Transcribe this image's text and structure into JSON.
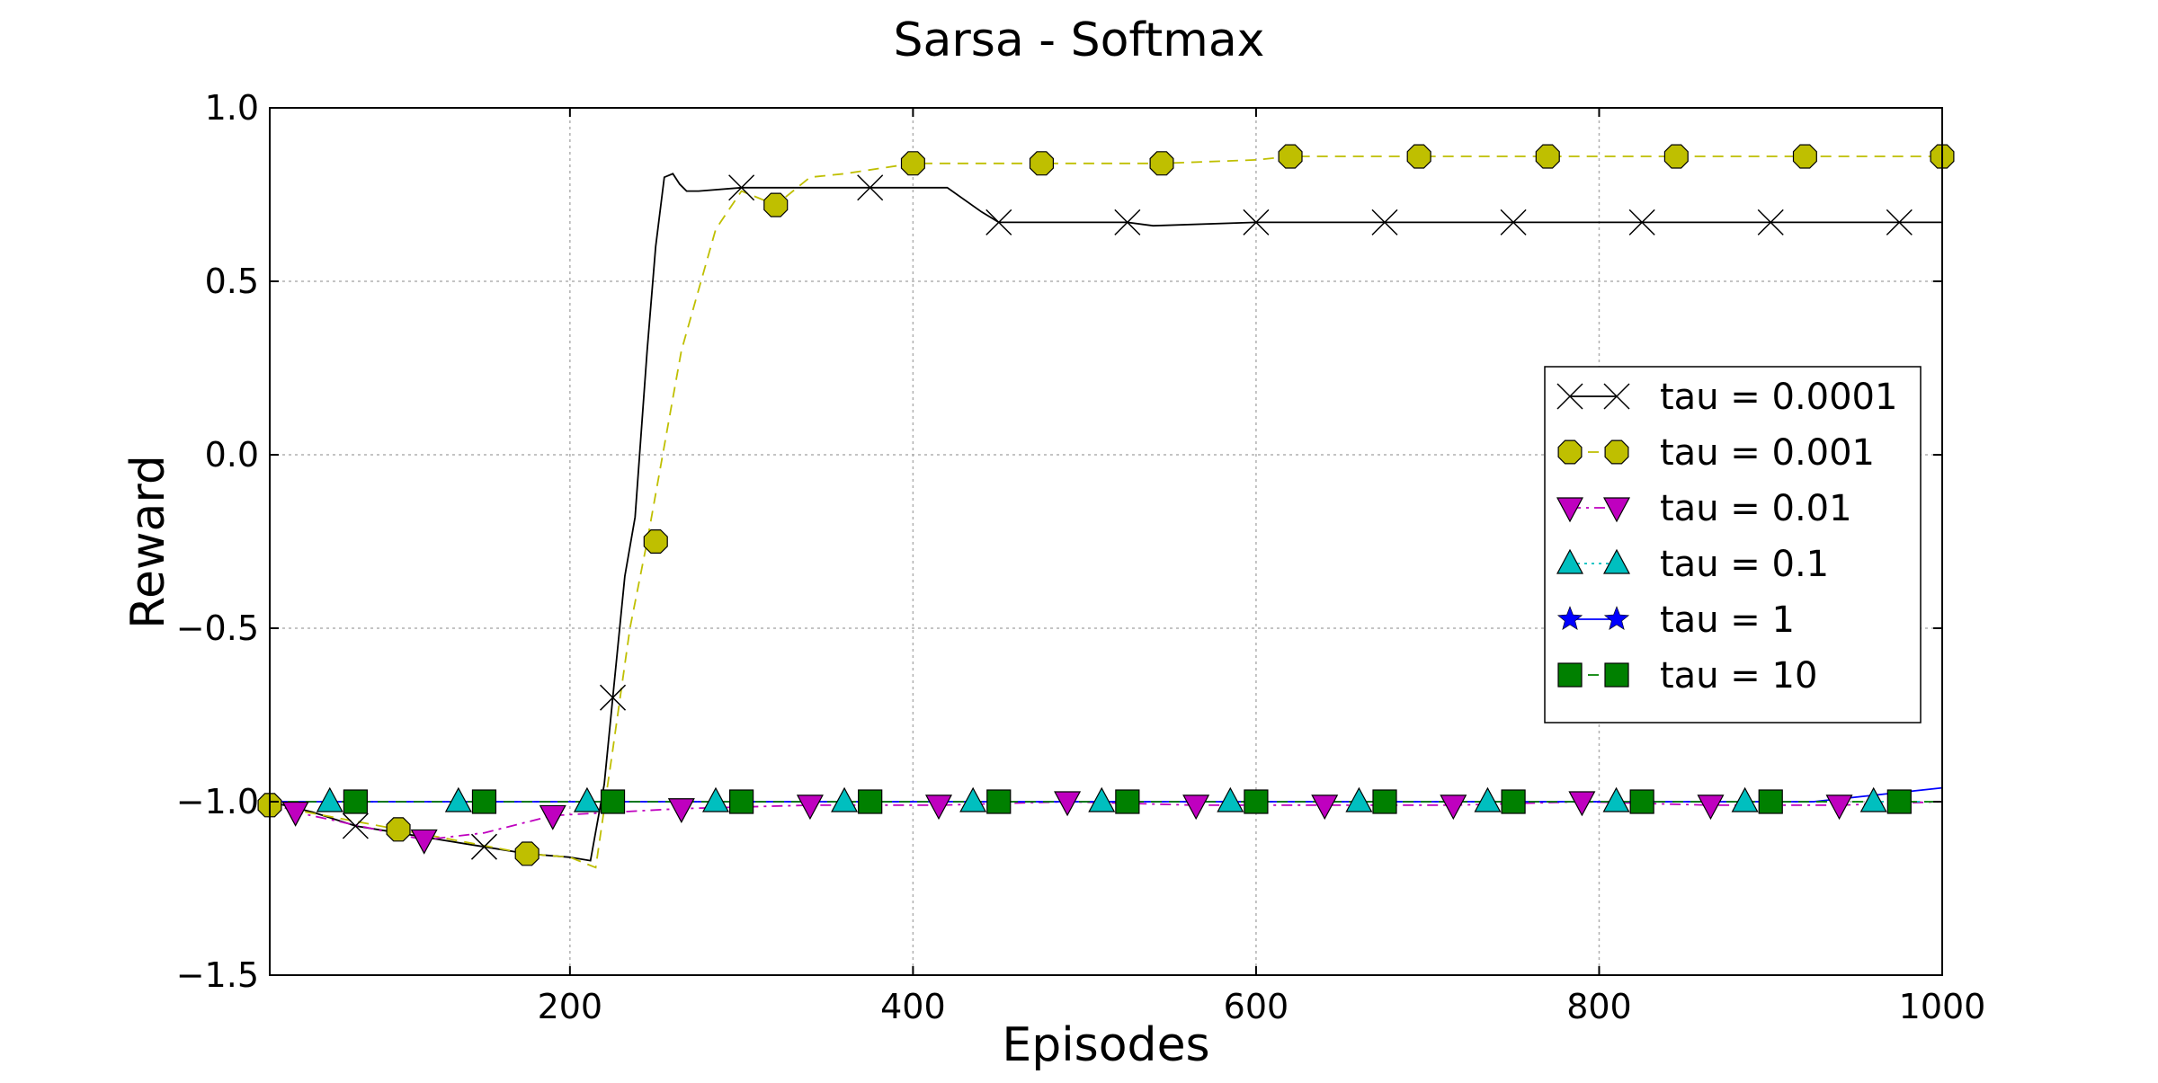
{
  "chart_data": {
    "type": "line",
    "title": "Sarsa - Softmax",
    "xlabel": "Episodes",
    "ylabel": "Reward",
    "xlim": [
      25,
      1000
    ],
    "ylim": [
      -1.5,
      1.0
    ],
    "xticks": [
      200,
      400,
      600,
      800,
      1000
    ],
    "yticks": [
      -1.5,
      -1.0,
      -0.5,
      0.0,
      0.5,
      1.0
    ],
    "xtick_labels": [
      "200",
      "400",
      "600",
      "800",
      "1000"
    ],
    "ytick_labels": [
      "−1.5",
      "−1.0",
      "−0.5",
      "0.0",
      "0.5",
      "1.0"
    ],
    "grid": true,
    "legend_position": "center-right",
    "series": [
      {
        "name": "tau = 0.0001",
        "color": "#000000",
        "marker": "x",
        "dash": "solid",
        "x": [
          25,
          50,
          75,
          100,
          125,
          150,
          175,
          200,
          212,
          220,
          225,
          232,
          238,
          245,
          250,
          255,
          260,
          264,
          268,
          275,
          300,
          350,
          375,
          420,
          440,
          450,
          500,
          525,
          540,
          600,
          675,
          750,
          825,
          900,
          975,
          1000
        ],
        "y": [
          -1.0,
          -1.03,
          -1.07,
          -1.09,
          -1.11,
          -1.13,
          -1.15,
          -1.16,
          -1.17,
          -0.95,
          -0.7,
          -0.35,
          -0.18,
          0.3,
          0.6,
          0.8,
          0.81,
          0.78,
          0.76,
          0.76,
          0.77,
          0.77,
          0.77,
          0.77,
          0.7,
          0.67,
          0.67,
          0.67,
          0.66,
          0.67,
          0.67,
          0.67,
          0.67,
          0.67,
          0.67,
          0.67
        ]
      },
      {
        "name": "tau = 0.001",
        "color": "#bfbf00",
        "marker": "octagon",
        "dash": "dashed",
        "x": [
          25,
          100,
          175,
          200,
          215,
          225,
          235,
          245,
          265,
          285,
          300,
          320,
          340,
          360,
          400,
          450,
          475,
          520,
          545,
          600,
          620,
          695,
          770,
          845,
          920,
          1000
        ],
        "y": [
          -1.01,
          -1.08,
          -1.15,
          -1.16,
          -1.19,
          -0.85,
          -0.5,
          -0.25,
          0.3,
          0.65,
          0.76,
          0.72,
          0.8,
          0.81,
          0.84,
          0.84,
          0.84,
          0.84,
          0.84,
          0.85,
          0.86,
          0.86,
          0.86,
          0.86,
          0.86,
          0.86
        ]
      },
      {
        "name": "tau = 0.01",
        "color": "#bf00bf",
        "marker": "triangle-down",
        "dash": "dashdot",
        "x": [
          25,
          40,
          115,
          150,
          190,
          265,
          340,
          415,
          490,
          565,
          640,
          715,
          790,
          865,
          940,
          1000
        ],
        "y": [
          -1.0,
          -1.03,
          -1.11,
          -1.09,
          -1.04,
          -1.02,
          -1.01,
          -1.01,
          -1.0,
          -1.01,
          -1.01,
          -1.01,
          -1.0,
          -1.01,
          -1.01,
          -1.0
        ]
      },
      {
        "name": "tau = 0.1",
        "color": "#00bfbf",
        "marker": "triangle-up",
        "dash": "dotted",
        "x": [
          25,
          60,
          135,
          210,
          285,
          360,
          435,
          510,
          585,
          660,
          735,
          810,
          885,
          960,
          1000
        ],
        "y": [
          -1.0,
          -1.0,
          -1.0,
          -1.0,
          -1.0,
          -1.0,
          -1.0,
          -1.0,
          -1.0,
          -1.0,
          -1.0,
          -1.0,
          -1.0,
          -1.0,
          -1.0
        ]
      },
      {
        "name": "tau = 1",
        "color": "#0000ff",
        "marker": "star",
        "dash": "solid",
        "x": [
          25,
          100,
          175,
          250,
          325,
          400,
          475,
          550,
          625,
          700,
          775,
          850,
          925,
          1000
        ],
        "y": [
          -1.0,
          -1.0,
          -1.0,
          -1.0,
          -1.0,
          -1.0,
          -1.0,
          -1.0,
          -1.0,
          -1.0,
          -1.0,
          -1.0,
          -1.0,
          -0.96
        ]
      },
      {
        "name": "tau = 10",
        "color": "#008000",
        "marker": "square",
        "dash": "dashed",
        "x": [
          25,
          75,
          150,
          225,
          300,
          375,
          450,
          525,
          600,
          675,
          750,
          825,
          900,
          975,
          1000
        ],
        "y": [
          -1.0,
          -1.0,
          -1.0,
          -1.0,
          -1.0,
          -1.0,
          -1.0,
          -1.0,
          -1.0,
          -1.0,
          -1.0,
          -1.0,
          -1.0,
          -1.0,
          -1.0
        ]
      }
    ],
    "markers": [
      {
        "series": 0,
        "x": [
          75,
          150,
          225,
          300,
          375,
          450,
          525,
          600,
          675,
          750,
          825,
          900,
          975
        ],
        "y": [
          -1.07,
          -1.13,
          -0.7,
          0.77,
          0.77,
          0.67,
          0.67,
          0.67,
          0.67,
          0.67,
          0.67,
          0.67,
          0.67
        ]
      },
      {
        "series": 1,
        "x": [
          25,
          100,
          175,
          250,
          320,
          400,
          475,
          545,
          620,
          695,
          770,
          845,
          920,
          1000
        ],
        "y": [
          -1.01,
          -1.08,
          -1.15,
          -0.25,
          0.72,
          0.84,
          0.84,
          0.84,
          0.86,
          0.86,
          0.86,
          0.86,
          0.86,
          0.86
        ]
      },
      {
        "series": 2,
        "x": [
          40,
          115,
          190,
          265,
          340,
          415,
          490,
          565,
          640,
          715,
          790,
          865,
          940
        ],
        "y": [
          -1.03,
          -1.11,
          -1.04,
          -1.02,
          -1.01,
          -1.01,
          -1.0,
          -1.01,
          -1.01,
          -1.01,
          -1.0,
          -1.01,
          -1.01
        ]
      },
      {
        "series": 3,
        "x": [
          60,
          135,
          210,
          285,
          360,
          435,
          510,
          585,
          660,
          735,
          810,
          885,
          960
        ],
        "y": [
          -1.0,
          -1.0,
          -1.0,
          -1.0,
          -1.0,
          -1.0,
          -1.0,
          -1.0,
          -1.0,
          -1.0,
          -1.0,
          -1.0,
          -1.0
        ]
      },
      {
        "series": 5,
        "x": [
          75,
          150,
          225,
          300,
          375,
          450,
          525,
          600,
          675,
          750,
          825,
          900,
          975
        ],
        "y": [
          -1.0,
          -1.0,
          -1.0,
          -1.0,
          -1.0,
          -1.0,
          -1.0,
          -1.0,
          -1.0,
          -1.0,
          -1.0,
          -1.0,
          -1.0
        ]
      }
    ]
  }
}
